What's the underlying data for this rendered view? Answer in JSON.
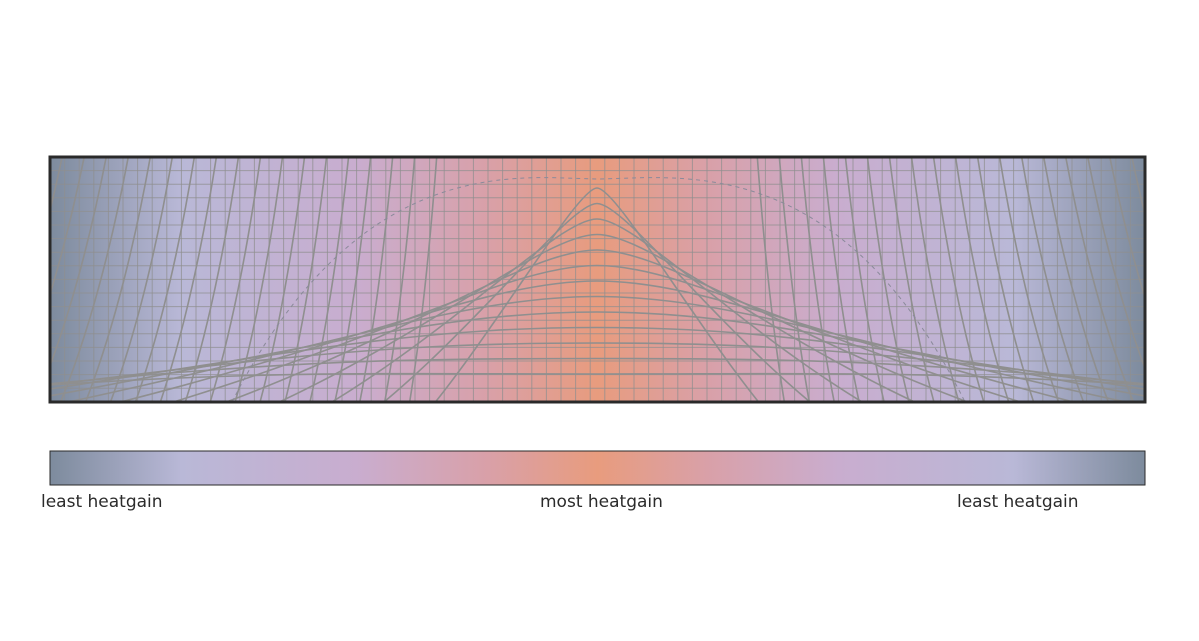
{
  "colors": {
    "edge": "#7d8b9d",
    "cool": "#b9b8d7",
    "mid": "#c9adcf",
    "warm": "#d9a0a8",
    "hot": "#e89c7e",
    "grid": "#8f8f8f",
    "frame": "#2a2a2a"
  },
  "legend": {
    "left_label": "least heatgain",
    "center_label": "most heatgain",
    "right_label": "least heatgain"
  }
}
